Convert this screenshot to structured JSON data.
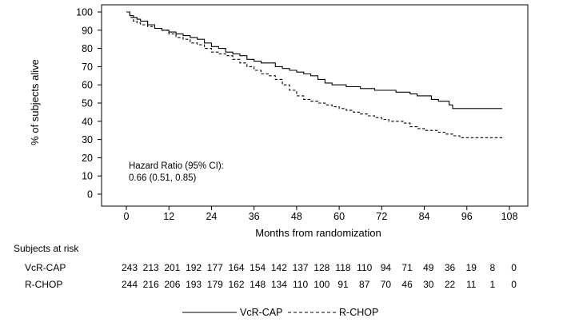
{
  "chart_data": {
    "type": "line",
    "xlabel": "Months from randomization",
    "ylabel": "% of subjects alive",
    "xlim": [
      0,
      108
    ],
    "ylim": [
      0,
      100
    ],
    "xticks": [
      "0",
      "12",
      "24",
      "36",
      "48",
      "60",
      "72",
      "84",
      "96",
      "108"
    ],
    "yticks": [
      "0",
      "10",
      "20",
      "30",
      "40",
      "50",
      "60",
      "70",
      "80",
      "90",
      "100"
    ],
    "grid": false,
    "legend_position": "bottom-center",
    "annotation": {
      "line1": "Hazard Ratio (95% CI):",
      "line2": "0.66 (0.51, 0.85)"
    },
    "series": [
      {
        "name": "VcR-CAP",
        "line_style": "solid",
        "x": [
          0,
          1,
          2,
          3,
          4,
          6,
          8,
          10,
          12,
          14,
          16,
          18,
          20,
          22,
          24,
          26,
          28,
          30,
          32,
          34,
          36,
          38,
          40,
          42,
          44,
          46,
          48,
          50,
          52,
          54,
          56,
          58,
          60,
          62,
          64,
          66,
          68,
          70,
          72,
          74,
          76,
          78,
          80,
          82,
          84,
          86,
          88,
          90,
          91,
          92,
          96,
          100,
          104,
          106
        ],
        "y": [
          100,
          98,
          97,
          96,
          95,
          93,
          91,
          90,
          89,
          88,
          87,
          86,
          85,
          83,
          81,
          80,
          78,
          77,
          76,
          74,
          73,
          72,
          72,
          70,
          69,
          68,
          67,
          66,
          65,
          63,
          61,
          60,
          60,
          59,
          59,
          58,
          58,
          57,
          57,
          57,
          56,
          56,
          55,
          54,
          54,
          52,
          51,
          51,
          49,
          47,
          47,
          47,
          47,
          47
        ]
      },
      {
        "name": "R-CHOP",
        "line_style": "dashed",
        "x": [
          0,
          1,
          2,
          3,
          4,
          6,
          8,
          10,
          12,
          14,
          16,
          18,
          20,
          22,
          24,
          26,
          28,
          30,
          32,
          34,
          36,
          38,
          40,
          42,
          44,
          46,
          48,
          50,
          52,
          54,
          56,
          58,
          60,
          62,
          64,
          66,
          68,
          70,
          72,
          74,
          76,
          78,
          80,
          82,
          84,
          86,
          88,
          90,
          92,
          94,
          96,
          100,
          104,
          106
        ],
        "y": [
          100,
          97,
          95,
          94,
          93,
          92,
          91,
          90,
          88,
          86,
          85,
          83,
          82,
          80,
          78,
          77,
          76,
          74,
          72,
          70,
          68,
          66,
          65,
          63,
          60,
          57,
          54,
          52,
          51,
          50,
          49,
          48,
          47,
          46,
          45,
          44,
          43,
          42,
          41,
          40,
          40,
          39,
          37,
          36,
          35,
          35,
          34,
          33,
          32,
          31,
          31,
          31,
          31,
          31
        ]
      }
    ]
  },
  "risk_table": {
    "title": "Subjects at risk",
    "rows": [
      {
        "label": "VcR-CAP",
        "values": [
          "243",
          "213",
          "201",
          "192",
          "177",
          "164",
          "154",
          "142",
          "137",
          "128",
          "118",
          "110",
          "94",
          "71",
          "49",
          "36",
          "19",
          "8",
          "0"
        ]
      },
      {
        "label": "R-CHOP",
        "values": [
          "244",
          "216",
          "206",
          "193",
          "179",
          "162",
          "148",
          "134",
          "110",
          "100",
          "91",
          "87",
          "70",
          "46",
          "30",
          "22",
          "11",
          "1",
          "0"
        ]
      }
    ]
  }
}
